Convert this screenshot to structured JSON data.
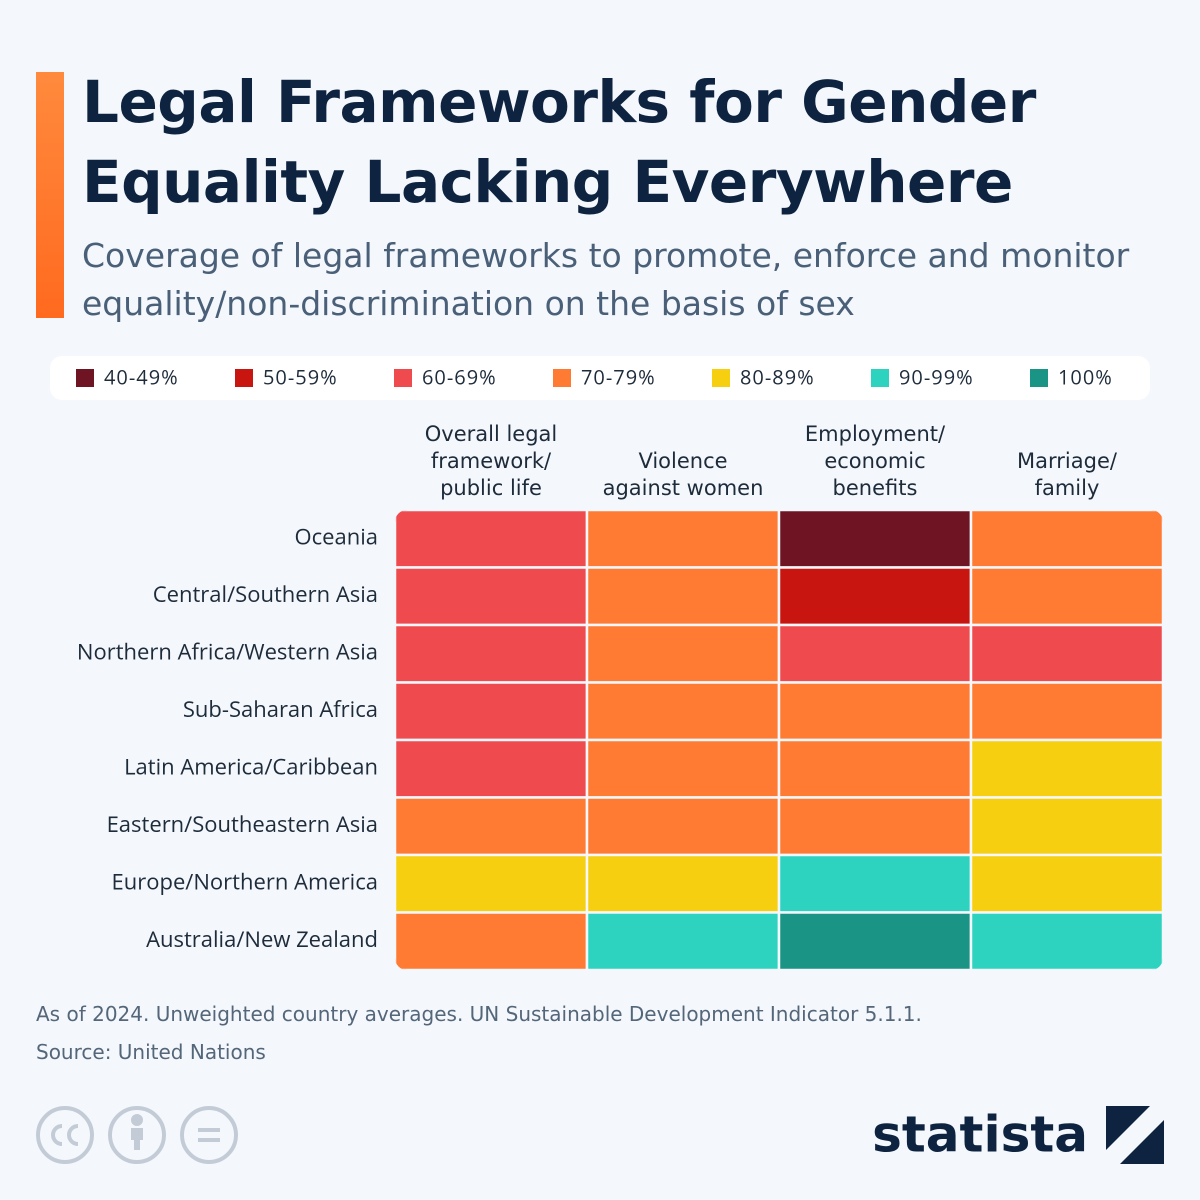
{
  "chart_data": {
    "type": "heatmap",
    "title": "Legal Frameworks for Gender Equality Lacking Everywhere",
    "subtitle": "Coverage of legal frameworks to promote, enforce and monitor equality/non-discrimination on the basis of sex",
    "bins": [
      {
        "label": "40-49%",
        "min": 40,
        "max": 49,
        "color": "#6e1423"
      },
      {
        "label": "50-59%",
        "min": 50,
        "max": 59,
        "color": "#c8150f"
      },
      {
        "label": "60-69%",
        "min": 60,
        "max": 69,
        "color": "#ef4a4e"
      },
      {
        "label": "70-79%",
        "min": 70,
        "max": 79,
        "color": "#ff7a33"
      },
      {
        "label": "80-89%",
        "min": 80,
        "max": 89,
        "color": "#f5cf10"
      },
      {
        "label": "90-99%",
        "min": 90,
        "max": 99,
        "color": "#2ed3c0"
      },
      {
        "label": "100%",
        "min": 100,
        "max": 100,
        "color": "#1a9485"
      }
    ],
    "columns": [
      "Overall legal framework/ public life",
      "Violence against women",
      "Employment/ economic benefits",
      "Marriage/ family"
    ],
    "rows": [
      "Oceania",
      "Central/Southern Asia",
      "Northern Africa/Western Asia",
      "Sub-Saharan Africa",
      "Latin America/Caribbean",
      "Eastern/Southeastern Asia",
      "Europe/Northern America",
      "Australia/New Zealand"
    ],
    "values": [
      [
        65,
        75,
        45,
        75
      ],
      [
        65,
        75,
        55,
        75
      ],
      [
        65,
        75,
        65,
        65
      ],
      [
        65,
        75,
        75,
        75
      ],
      [
        65,
        75,
        75,
        85
      ],
      [
        75,
        75,
        75,
        85
      ],
      [
        85,
        85,
        95,
        85
      ],
      [
        75,
        95,
        100,
        95
      ]
    ],
    "note": "As of 2024. Unweighted country averages. UN Sustainable Development Indicator 5.1.1.",
    "source": "Source: United Nations",
    "brand": "statista"
  }
}
